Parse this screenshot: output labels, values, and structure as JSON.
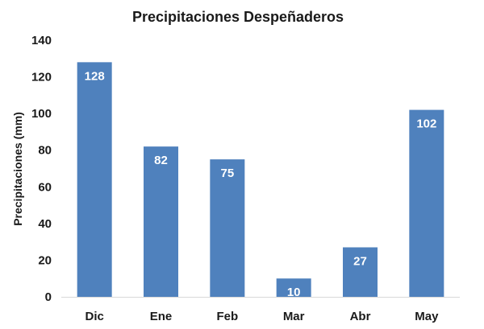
{
  "chart_data": {
    "type": "bar",
    "title": "Precipitaciones Despeñaderos",
    "xlabel": "",
    "ylabel": "Precipitaciones (mm)",
    "categories": [
      "Dic",
      "Ene",
      "Feb",
      "Mar",
      "Abr",
      "May"
    ],
    "values": [
      128,
      82,
      75,
      10,
      27,
      102
    ],
    "data_labels": [
      "128",
      "82",
      "75",
      "10",
      "27",
      "102"
    ],
    "ylim": [
      0,
      140
    ],
    "yticks": [
      0,
      20,
      40,
      60,
      80,
      100,
      120,
      140
    ],
    "grid": false,
    "legend": "none",
    "bar_color": "#4F81BD"
  }
}
